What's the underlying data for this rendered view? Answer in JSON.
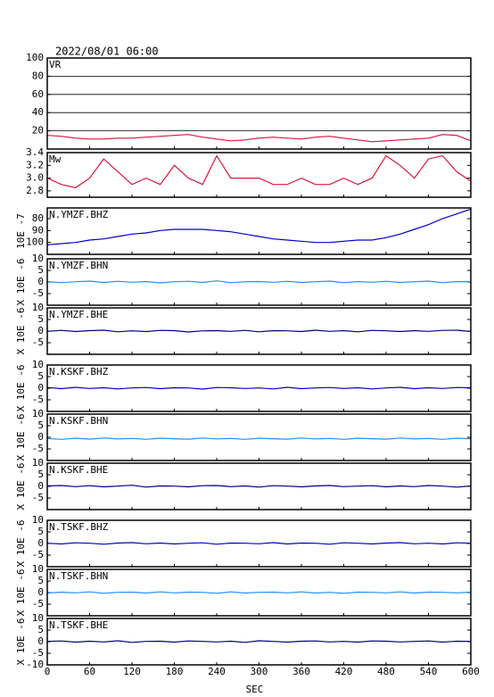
{
  "header": {
    "title": "2022/08/01 06:00"
  },
  "chart_data": [
    {
      "type": "line",
      "label": "VR",
      "color": "#dc143c",
      "xlim": [
        0,
        600
      ],
      "ylim": [
        0,
        100
      ],
      "yticks": [
        20,
        40,
        60,
        80,
        100
      ],
      "grid": true,
      "x": [
        0,
        20,
        40,
        60,
        80,
        100,
        120,
        140,
        160,
        180,
        200,
        220,
        240,
        260,
        280,
        300,
        320,
        340,
        360,
        380,
        400,
        420,
        440,
        460,
        480,
        500,
        520,
        540,
        560,
        580,
        600
      ],
      "values": [
        15,
        14,
        12,
        11,
        11,
        12,
        12,
        13,
        14,
        15,
        16,
        13,
        11,
        9,
        10,
        12,
        13,
        12,
        11,
        13,
        14,
        12,
        10,
        8,
        9,
        10,
        11,
        12,
        16,
        15,
        9
      ]
    },
    {
      "type": "line",
      "label": "Mw",
      "color": "#dc143c",
      "xlim": [
        0,
        600
      ],
      "ylim": [
        2.7,
        3.4
      ],
      "yticks": [
        2.8,
        {
          "value": 3,
          "label": "3.0"
        },
        3.2,
        3.4
      ],
      "grid": false,
      "x": [
        0,
        20,
        40,
        60,
        80,
        100,
        120,
        140,
        160,
        180,
        200,
        220,
        240,
        260,
        280,
        300,
        320,
        340,
        360,
        380,
        400,
        420,
        440,
        460,
        480,
        500,
        520,
        540,
        560,
        580,
        600
      ],
      "values": [
        3.0,
        2.9,
        2.85,
        3.0,
        3.3,
        3.1,
        2.9,
        3.0,
        2.9,
        3.2,
        3.0,
        2.9,
        3.35,
        3.0,
        3.0,
        3.0,
        2.9,
        2.9,
        3.0,
        2.9,
        2.9,
        3.0,
        2.9,
        3.0,
        3.35,
        3.2,
        3.0,
        3.3,
        3.35,
        3.1,
        2.95
      ]
    },
    {
      "type": "line",
      "label": "N.YMZF.BHZ",
      "ylabel": "10E -7",
      "color": "#0000cd",
      "xlim": [
        0,
        600
      ],
      "ylim": [
        71,
        110
      ],
      "y_inverted": true,
      "yticks": [
        80,
        90,
        100
      ],
      "grid": false,
      "x": [
        0,
        20,
        40,
        60,
        80,
        100,
        120,
        140,
        160,
        180,
        200,
        220,
        240,
        260,
        280,
        300,
        320,
        340,
        360,
        380,
        400,
        420,
        440,
        460,
        480,
        500,
        520,
        540,
        560,
        580,
        600
      ],
      "values": [
        102,
        101,
        100,
        98,
        97,
        95,
        93,
        92,
        90,
        89,
        89,
        89,
        90,
        91,
        93,
        95,
        97,
        98,
        99,
        100,
        100,
        99,
        98,
        98,
        96,
        93,
        89,
        85,
        80,
        76,
        72
      ]
    },
    {
      "type": "line",
      "label": "N.YMZF.BHN",
      "ylabel": "X 10E -6",
      "color": "#1e90ff",
      "xlim": [
        0,
        600
      ],
      "ylim": [
        -10,
        10
      ],
      "yticks": [
        -5,
        0,
        5,
        10
      ],
      "grid": false,
      "x": [
        0,
        20,
        40,
        60,
        80,
        100,
        120,
        140,
        160,
        180,
        200,
        220,
        240,
        260,
        280,
        300,
        320,
        340,
        360,
        380,
        400,
        420,
        440,
        460,
        480,
        500,
        520,
        540,
        560,
        580,
        600
      ],
      "values": [
        0.2,
        -0.3,
        0.1,
        0.4,
        -0.2,
        0.3,
        -0.1,
        0.2,
        -0.4,
        0.1,
        0.3,
        -0.2,
        0.5,
        -0.3,
        0.1,
        0.2,
        -0.1,
        0.3,
        -0.2,
        0.1,
        0.4,
        -0.3,
        0.2,
        -0.1,
        0.3,
        -0.2,
        0.1,
        0.4,
        -0.3,
        0.2,
        0.1
      ]
    },
    {
      "type": "line",
      "label": "N.YMZF.BHE",
      "ylabel": "X 10E -6",
      "color": "#000080",
      "xlim": [
        0,
        600
      ],
      "ylim": [
        -10,
        10
      ],
      "yticks": [
        -5,
        0,
        5,
        10
      ],
      "grid": false,
      "x": [
        0,
        20,
        40,
        60,
        80,
        100,
        120,
        140,
        160,
        180,
        200,
        220,
        240,
        260,
        280,
        300,
        320,
        340,
        360,
        380,
        400,
        420,
        440,
        460,
        480,
        500,
        520,
        540,
        560,
        580,
        600
      ],
      "values": [
        -0.1,
        0.3,
        -0.2,
        0.2,
        0.4,
        -0.3,
        0.1,
        -0.2,
        0.3,
        0.2,
        -0.4,
        0.1,
        0.2,
        -0.1,
        0.3,
        -0.3,
        0.2,
        0.1,
        -0.2,
        0.4,
        -0.1,
        0.2,
        -0.3,
        0.3,
        0.1,
        -0.2,
        0.2,
        -0.1,
        0.3,
        0.4,
        -0.2
      ]
    },
    {
      "type": "line",
      "label": "N.KSKF.BHZ",
      "ylabel": "X 10E -6",
      "color": "#0000cd",
      "xlim": [
        0,
        600
      ],
      "ylim": [
        -10,
        10
      ],
      "yticks": [
        -5,
        0,
        5,
        10
      ],
      "grid": false,
      "x": [
        0,
        20,
        40,
        60,
        80,
        100,
        120,
        140,
        160,
        180,
        200,
        220,
        240,
        260,
        280,
        300,
        320,
        340,
        360,
        380,
        400,
        420,
        440,
        460,
        480,
        500,
        520,
        540,
        560,
        580,
        600
      ],
      "values": [
        0.3,
        -0.2,
        0.4,
        -0.1,
        0.2,
        -0.3,
        0.1,
        0.3,
        -0.2,
        0.2,
        0.1,
        -0.4,
        0.3,
        0.2,
        -0.1,
        0.1,
        -0.3,
        0.4,
        -0.2,
        0.1,
        0.3,
        -0.1,
        0.2,
        -0.3,
        0.1,
        0.4,
        -0.2,
        0.2,
        -0.1,
        0.3,
        0.2
      ]
    },
    {
      "type": "line",
      "label": "N.KSKF.BHN",
      "ylabel": "X 10E -6",
      "color": "#1e90ff",
      "xlim": [
        0,
        600
      ],
      "ylim": [
        -10,
        10
      ],
      "yticks": [
        -5,
        0,
        5,
        10
      ],
      "grid": false,
      "x": [
        0,
        20,
        40,
        60,
        80,
        100,
        120,
        140,
        160,
        180,
        200,
        220,
        240,
        260,
        280,
        300,
        320,
        340,
        360,
        380,
        400,
        420,
        440,
        460,
        480,
        500,
        520,
        540,
        560,
        580,
        600
      ],
      "values": [
        -0.5,
        -0.9,
        -0.4,
        -0.8,
        -0.3,
        -0.7,
        -0.5,
        -0.9,
        -0.4,
        -0.6,
        -0.8,
        -0.3,
        -0.7,
        -0.5,
        -0.9,
        -0.4,
        -0.6,
        -0.8,
        -0.3,
        -0.7,
        -0.5,
        -0.9,
        -0.4,
        -0.6,
        -0.8,
        -0.3,
        -0.7,
        -0.5,
        -0.9,
        -0.4,
        -0.6
      ]
    },
    {
      "type": "line",
      "label": "N.KSKF.BHE",
      "ylabel": "X 10E -6",
      "color": "#000080",
      "xlim": [
        0,
        600
      ],
      "ylim": [
        -10,
        10
      ],
      "yticks": [
        -5,
        0,
        5,
        10
      ],
      "grid": false,
      "x": [
        0,
        20,
        40,
        60,
        80,
        100,
        120,
        140,
        160,
        180,
        200,
        220,
        240,
        260,
        280,
        300,
        320,
        340,
        360,
        380,
        400,
        420,
        440,
        460,
        480,
        500,
        520,
        540,
        560,
        580,
        600
      ],
      "values": [
        0.2,
        0.4,
        -0.1,
        0.3,
        -0.2,
        0.1,
        0.5,
        -0.3,
        0.2,
        0.1,
        -0.2,
        0.3,
        0.4,
        -0.1,
        0.2,
        -0.3,
        0.3,
        0.1,
        -0.2,
        0.2,
        0.4,
        -0.1,
        0.1,
        0.3,
        -0.2,
        0.2,
        -0.1,
        0.4,
        0.1,
        -0.3,
        0.2
      ]
    },
    {
      "type": "line",
      "label": "N.TSKF.BHZ",
      "ylabel": "X 10E -6",
      "color": "#0000cd",
      "xlim": [
        0,
        600
      ],
      "ylim": [
        -10,
        10
      ],
      "yticks": [
        -5,
        0,
        5,
        10
      ],
      "grid": false,
      "x": [
        0,
        20,
        40,
        60,
        80,
        100,
        120,
        140,
        160,
        180,
        200,
        220,
        240,
        260,
        280,
        300,
        320,
        340,
        360,
        380,
        400,
        420,
        440,
        460,
        480,
        500,
        520,
        540,
        560,
        580,
        600
      ],
      "values": [
        0.1,
        -0.2,
        0.3,
        0.1,
        -0.3,
        0.2,
        0.4,
        -0.1,
        0.2,
        -0.2,
        0.1,
        0.3,
        -0.3,
        0.2,
        0.1,
        -0.1,
        0.4,
        -0.2,
        0.2,
        0.1,
        -0.3,
        0.3,
        0.1,
        -0.2,
        0.2,
        0.4,
        -0.1,
        0.1,
        -0.2,
        0.3,
        0.1
      ]
    },
    {
      "type": "line",
      "label": "N.TSKF.BHN",
      "ylabel": "X 10E -6",
      "color": "#1e90ff",
      "xlim": [
        0,
        600
      ],
      "ylim": [
        -10,
        10
      ],
      "yticks": [
        -5,
        0,
        5,
        10
      ],
      "grid": false,
      "x": [
        0,
        20,
        40,
        60,
        80,
        100,
        120,
        140,
        160,
        180,
        200,
        220,
        240,
        260,
        280,
        300,
        320,
        340,
        360,
        380,
        400,
        420,
        440,
        460,
        480,
        500,
        520,
        540,
        560,
        580,
        600
      ],
      "values": [
        -0.2,
        0.2,
        -0.1,
        0.3,
        -0.3,
        0.1,
        0.2,
        -0.2,
        0.3,
        -0.1,
        0.2,
        0.1,
        -0.3,
        0.3,
        -0.2,
        0.1,
        0.2,
        -0.1,
        0.3,
        -0.2,
        0.1,
        -0.3,
        0.2,
        0.1,
        -0.1,
        0.3,
        -0.2,
        0.2,
        0.1,
        -0.1,
        0.2
      ]
    },
    {
      "type": "line",
      "label": "N.TSKF.BHE",
      "ylabel": "X 10E -6",
      "color": "#000080",
      "xlim": [
        0,
        600
      ],
      "ylim": [
        -10,
        10
      ],
      "yticks": [
        -10,
        -5,
        0,
        5,
        10
      ],
      "grid": false,
      "xticks": [
        0,
        60,
        120,
        180,
        240,
        300,
        360,
        420,
        480,
        540,
        600
      ],
      "xlabel": "SEC",
      "x": [
        0,
        20,
        40,
        60,
        80,
        100,
        120,
        140,
        160,
        180,
        200,
        220,
        240,
        260,
        280,
        300,
        320,
        340,
        360,
        380,
        400,
        420,
        440,
        460,
        480,
        500,
        520,
        540,
        560,
        580,
        600
      ],
      "values": [
        0.1,
        0.3,
        -0.2,
        0.2,
        -0.1,
        0.4,
        -0.3,
        0.1,
        0.2,
        -0.2,
        0.3,
        0.1,
        -0.1,
        0.2,
        -0.3,
        0.4,
        0.1,
        -0.2,
        0.2,
        0.3,
        -0.1,
        0.1,
        -0.2,
        0.3,
        0.2,
        -0.1,
        0.1,
        0.3,
        -0.2,
        0.2,
        0.1
      ]
    }
  ]
}
